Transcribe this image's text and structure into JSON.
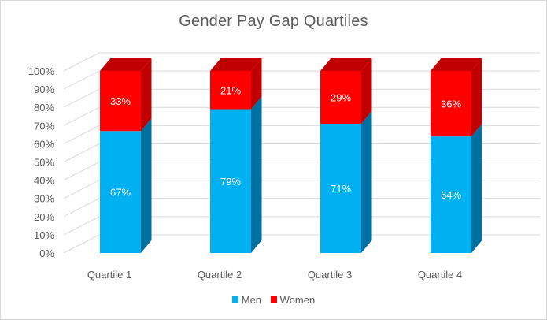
{
  "chart_data": {
    "type": "bar",
    "stacked": true,
    "percent_stacked": true,
    "style": "3d",
    "title": "Gender Pay Gap Quartiles",
    "categories": [
      "Quartile 1",
      "Quartile 2",
      "Quartile 3",
      "Quartile 4"
    ],
    "series": [
      {
        "name": "Men",
        "values": [
          67,
          79,
          71,
          64
        ],
        "labels": [
          "67%",
          "79%",
          "71%",
          "64%"
        ],
        "color": "#00b0f0",
        "side_color": "#0070a0"
      },
      {
        "name": "Women",
        "values": [
          33,
          21,
          29,
          36
        ],
        "labels": [
          "33%",
          "21%",
          "29%",
          "36%"
        ],
        "color": "#ff0000",
        "side_color": "#c00000"
      }
    ],
    "y_ticks": [
      "0%",
      "10%",
      "20%",
      "30%",
      "40%",
      "50%",
      "60%",
      "70%",
      "80%",
      "90%",
      "100%"
    ],
    "ylim": [
      0,
      100
    ],
    "grid": true,
    "legend_position": "bottom"
  }
}
